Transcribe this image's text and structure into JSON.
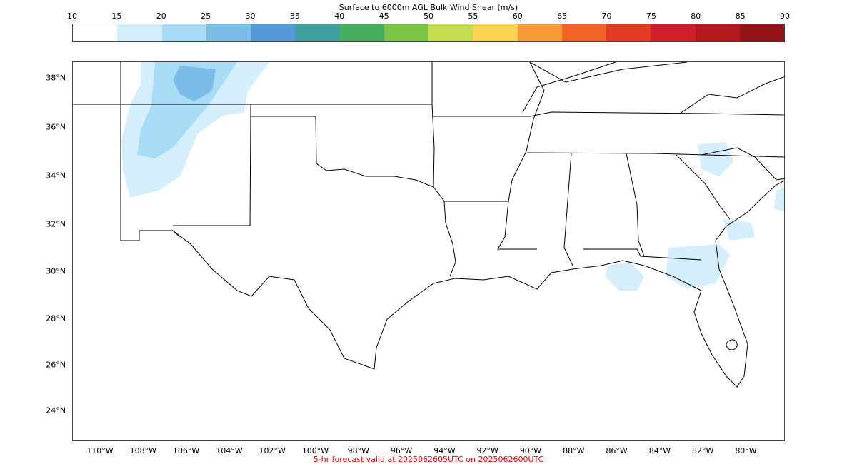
{
  "colorbar": {
    "title": "Surface to 6000m AGL Bulk Wind Shear (m/s)",
    "ticks": [
      "10",
      "15",
      "20",
      "25",
      "30",
      "35",
      "40",
      "45",
      "50",
      "55",
      "60",
      "65",
      "70",
      "75",
      "80",
      "85",
      "90"
    ],
    "colors": [
      "#ffffff",
      "#d4eefb",
      "#a8dcf6",
      "#7bbde8",
      "#5599d6",
      "#419e9e",
      "#48ac5e",
      "#79c345",
      "#c5db52",
      "#fbd354",
      "#f99a3a",
      "#f26126",
      "#e33a26",
      "#d11e2d",
      "#b5181f",
      "#941519"
    ]
  },
  "map": {
    "lat_labels": [
      "38°N",
      "36°N",
      "34°N",
      "32°N",
      "30°N",
      "28°N",
      "26°N",
      "24°N"
    ],
    "lon_labels": [
      "110°W",
      "108°W",
      "106°W",
      "104°W",
      "102°W",
      "100°W",
      "98°W",
      "96°W",
      "94°W",
      "92°W",
      "90°W",
      "88°W",
      "86°W",
      "84°W",
      "82°W",
      "80°W"
    ]
  },
  "caption": "5-hr forecast valid at 2025062605UTC on 2025062600UTC"
}
